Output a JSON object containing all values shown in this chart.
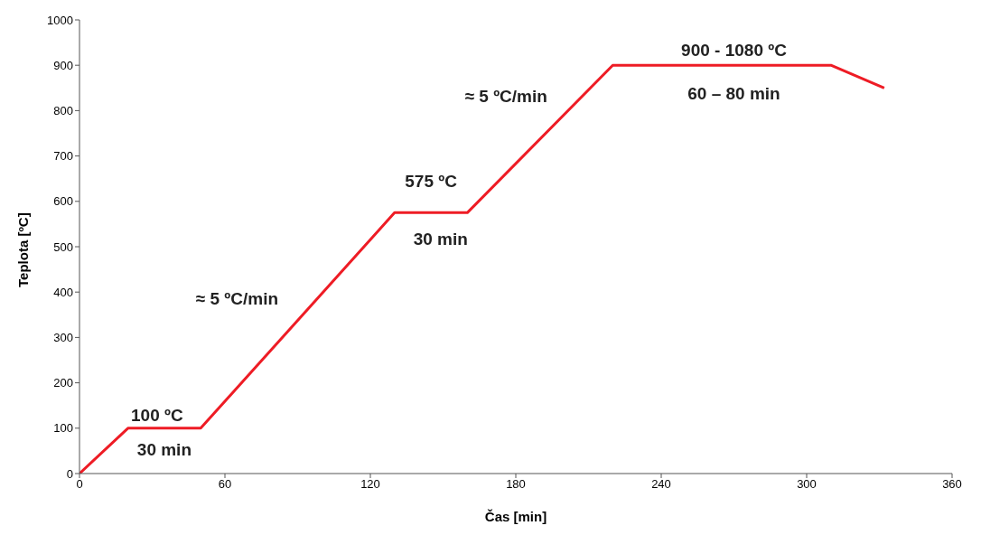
{
  "chart_data": {
    "type": "line",
    "xlabel": "Čas [min]",
    "ylabel": "Teplota [ºC]",
    "x": [
      0,
      20,
      50,
      130,
      160,
      220,
      310,
      332
    ],
    "series": [
      {
        "color": "#ee1c25",
        "values": [
          0,
          100,
          100,
          575,
          575,
          900,
          900,
          850
        ]
      }
    ],
    "xlim": [
      0,
      360
    ],
    "xticks": [
      0,
      60,
      120,
      180,
      240,
      300,
      360
    ],
    "ylim": [
      0,
      1000
    ],
    "yticks": [
      0,
      100,
      200,
      300,
      400,
      500,
      600,
      700,
      800,
      900,
      1000
    ],
    "grid": false,
    "legend": false,
    "marker": "none",
    "line_style": "solid",
    "annotations": [
      "100 ºC",
      "30 min",
      "≈ 5 ºC/min",
      "575 ºC",
      "30 min",
      "≈ 5 ºC/min",
      "900 - 1080 ºC",
      "60 – 80 min"
    ]
  }
}
